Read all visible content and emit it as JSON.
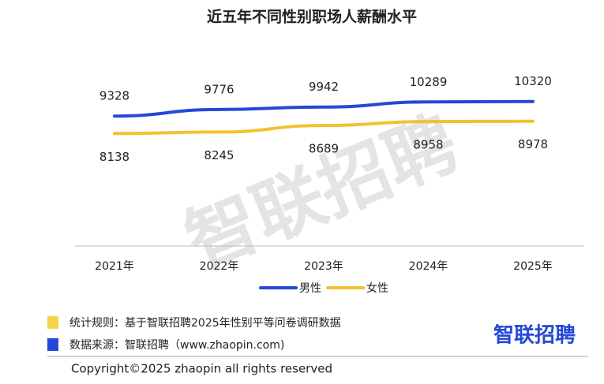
{
  "chart_data": {
    "type": "line",
    "title": "近五年不同性别职场人薪酬水平",
    "categories": [
      "2021年",
      "2022年",
      "2023年",
      "2024年",
      "2025年"
    ],
    "series": [
      {
        "name": "男性",
        "color": "#2448d8",
        "values": [
          9328,
          9776,
          9942,
          10289,
          10320
        ]
      },
      {
        "name": "女性",
        "color": "#f2c12e",
        "values": [
          8138,
          8245,
          8689,
          8958,
          8978
        ]
      }
    ],
    "ylim": [
      500,
      14000
    ],
    "grid": false,
    "legend": "bottom"
  },
  "watermark": "智联招聘",
  "notes": [
    {
      "color": "#f7d34a",
      "text": "统计规则：基于智联招聘2025年性别平等问卷调研数据"
    },
    {
      "color": "#2448d8",
      "text": "数据来源：智联招聘（www.zhaopin.com)"
    }
  ],
  "logo": "智联招聘",
  "copyright": "Copyright©2025 zhaopin all rights reserved"
}
